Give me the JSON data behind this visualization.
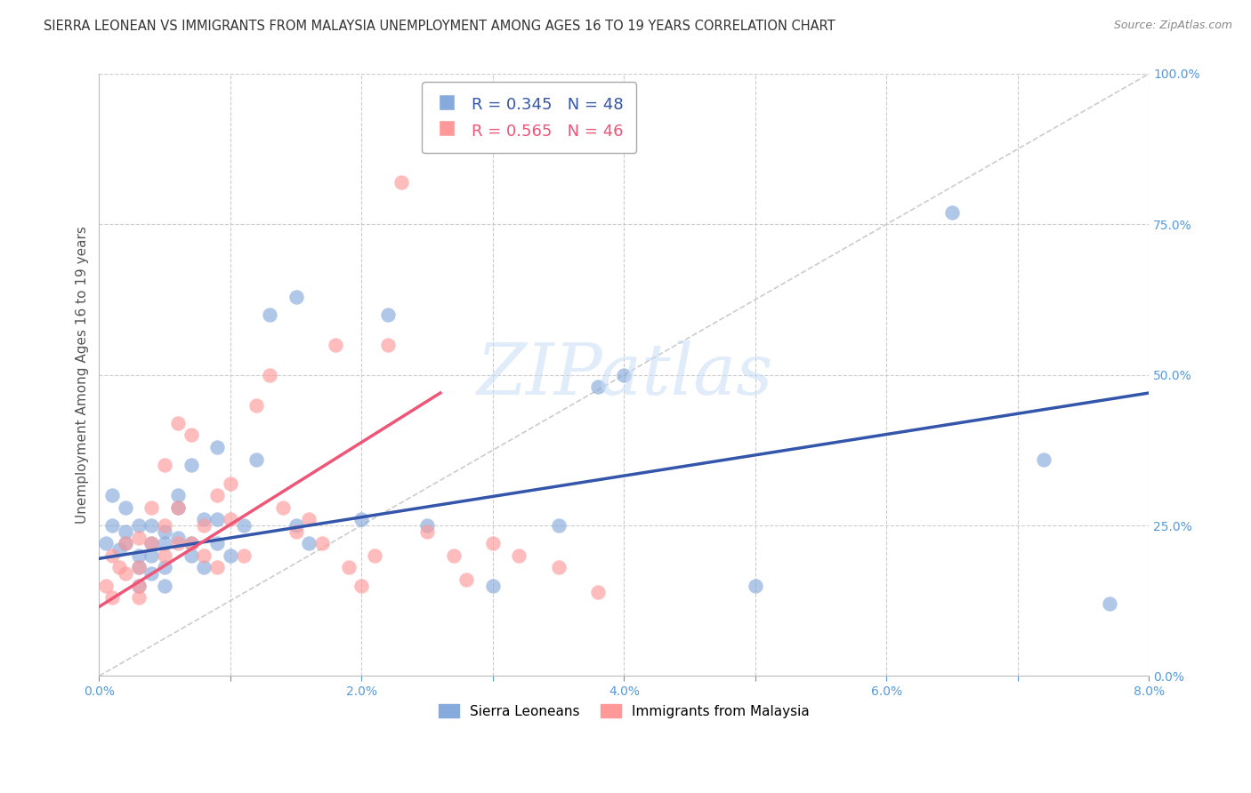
{
  "title": "SIERRA LEONEAN VS IMMIGRANTS FROM MALAYSIA UNEMPLOYMENT AMONG AGES 16 TO 19 YEARS CORRELATION CHART",
  "source": "Source: ZipAtlas.com",
  "ylabel": "Unemployment Among Ages 16 to 19 years",
  "xlim": [
    0.0,
    0.08
  ],
  "ylim": [
    0.0,
    1.0
  ],
  "xtick_vals": [
    0.0,
    0.01,
    0.02,
    0.03,
    0.04,
    0.05,
    0.06,
    0.07,
    0.08
  ],
  "xtick_labels": [
    "0.0%",
    "",
    "2.0%",
    "",
    "4.0%",
    "",
    "6.0%",
    "",
    "8.0%"
  ],
  "yticks_right": [
    0.0,
    0.25,
    0.5,
    0.75,
    1.0
  ],
  "ytick_labels_right": [
    "0.0%",
    "25.0%",
    "50.0%",
    "75.0%",
    "100.0%"
  ],
  "legend_label_blue": "Sierra Leoneans",
  "legend_label_pink": "Immigrants from Malaysia",
  "blue_color": "#87AADD",
  "pink_color": "#FF9999",
  "blue_line_color": "#3355AA",
  "pink_line_color": "#EE5577",
  "diag_color": "#CCCCCC",
  "watermark": "ZIPatlas",
  "blue_R": 0.345,
  "blue_N": 48,
  "pink_R": 0.565,
  "pink_N": 46,
  "blue_line_x0": 0.0,
  "blue_line_y0": 0.195,
  "blue_line_x1": 0.08,
  "blue_line_y1": 0.47,
  "pink_line_x0": 0.0,
  "pink_line_y0": 0.115,
  "pink_line_x1": 0.026,
  "pink_line_y1": 0.47,
  "blue_x": [
    0.0005,
    0.001,
    0.001,
    0.0015,
    0.002,
    0.002,
    0.002,
    0.003,
    0.003,
    0.003,
    0.003,
    0.004,
    0.004,
    0.004,
    0.004,
    0.005,
    0.005,
    0.005,
    0.005,
    0.006,
    0.006,
    0.006,
    0.007,
    0.007,
    0.007,
    0.008,
    0.008,
    0.009,
    0.009,
    0.009,
    0.01,
    0.011,
    0.012,
    0.013,
    0.015,
    0.015,
    0.016,
    0.02,
    0.022,
    0.025,
    0.03,
    0.035,
    0.038,
    0.04,
    0.05,
    0.065,
    0.072,
    0.077
  ],
  "blue_y": [
    0.22,
    0.3,
    0.25,
    0.21,
    0.28,
    0.24,
    0.22,
    0.2,
    0.18,
    0.25,
    0.15,
    0.22,
    0.2,
    0.17,
    0.25,
    0.22,
    0.24,
    0.18,
    0.15,
    0.28,
    0.3,
    0.23,
    0.2,
    0.35,
    0.22,
    0.18,
    0.26,
    0.22,
    0.26,
    0.38,
    0.2,
    0.25,
    0.36,
    0.6,
    0.63,
    0.25,
    0.22,
    0.26,
    0.6,
    0.25,
    0.15,
    0.25,
    0.48,
    0.5,
    0.15,
    0.77,
    0.36,
    0.12
  ],
  "pink_x": [
    0.0005,
    0.001,
    0.001,
    0.0015,
    0.002,
    0.002,
    0.003,
    0.003,
    0.003,
    0.003,
    0.004,
    0.004,
    0.005,
    0.005,
    0.005,
    0.006,
    0.006,
    0.006,
    0.007,
    0.007,
    0.008,
    0.008,
    0.009,
    0.009,
    0.01,
    0.01,
    0.011,
    0.012,
    0.013,
    0.014,
    0.015,
    0.016,
    0.017,
    0.018,
    0.019,
    0.02,
    0.021,
    0.022,
    0.023,
    0.025,
    0.027,
    0.028,
    0.03,
    0.032,
    0.035,
    0.038
  ],
  "pink_y": [
    0.15,
    0.2,
    0.13,
    0.18,
    0.22,
    0.17,
    0.18,
    0.23,
    0.15,
    0.13,
    0.28,
    0.22,
    0.35,
    0.2,
    0.25,
    0.42,
    0.28,
    0.22,
    0.4,
    0.22,
    0.2,
    0.25,
    0.18,
    0.3,
    0.26,
    0.32,
    0.2,
    0.45,
    0.5,
    0.28,
    0.24,
    0.26,
    0.22,
    0.55,
    0.18,
    0.15,
    0.2,
    0.55,
    0.82,
    0.24,
    0.2,
    0.16,
    0.22,
    0.2,
    0.18,
    0.14
  ],
  "background_color": "#FFFFFF",
  "grid_color": "#CCCCCC",
  "title_fontsize": 10.5,
  "axis_label_fontsize": 11,
  "tick_fontsize": 10,
  "right_tick_color": "#5599DD",
  "watermark_color": "#C8DDF5",
  "watermark_alpha": 0.55
}
